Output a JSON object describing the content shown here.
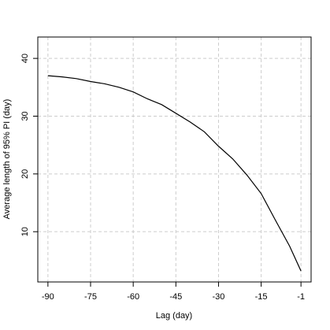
{
  "chart_data": {
    "type": "line",
    "xlabel": "Lag (day)",
    "ylabel": "Average length of 95% PI (day)",
    "x": [
      -90,
      -85,
      -80,
      -75,
      -70,
      -65,
      -60,
      -55,
      -50,
      -45,
      -40,
      -35,
      -30,
      -25,
      -20,
      -15,
      -10,
      -5,
      -1
    ],
    "series": [
      {
        "color": "#000000",
        "values": [
          37.0,
          36.8,
          36.5,
          36.0,
          35.6,
          35.0,
          34.2,
          33.0,
          32.0,
          30.5,
          29.0,
          27.3,
          24.8,
          22.6,
          19.8,
          16.6,
          12.0,
          7.5,
          3.2
        ]
      }
    ],
    "xlim": [
      -93.56,
      2.56
    ],
    "xticks": [
      -90,
      -75,
      -60,
      -45,
      -30,
      -15,
      -1
    ],
    "ylim": [
      1.3,
      43.7
    ],
    "yticks": [
      10,
      20,
      30,
      40
    ],
    "grid": true
  }
}
